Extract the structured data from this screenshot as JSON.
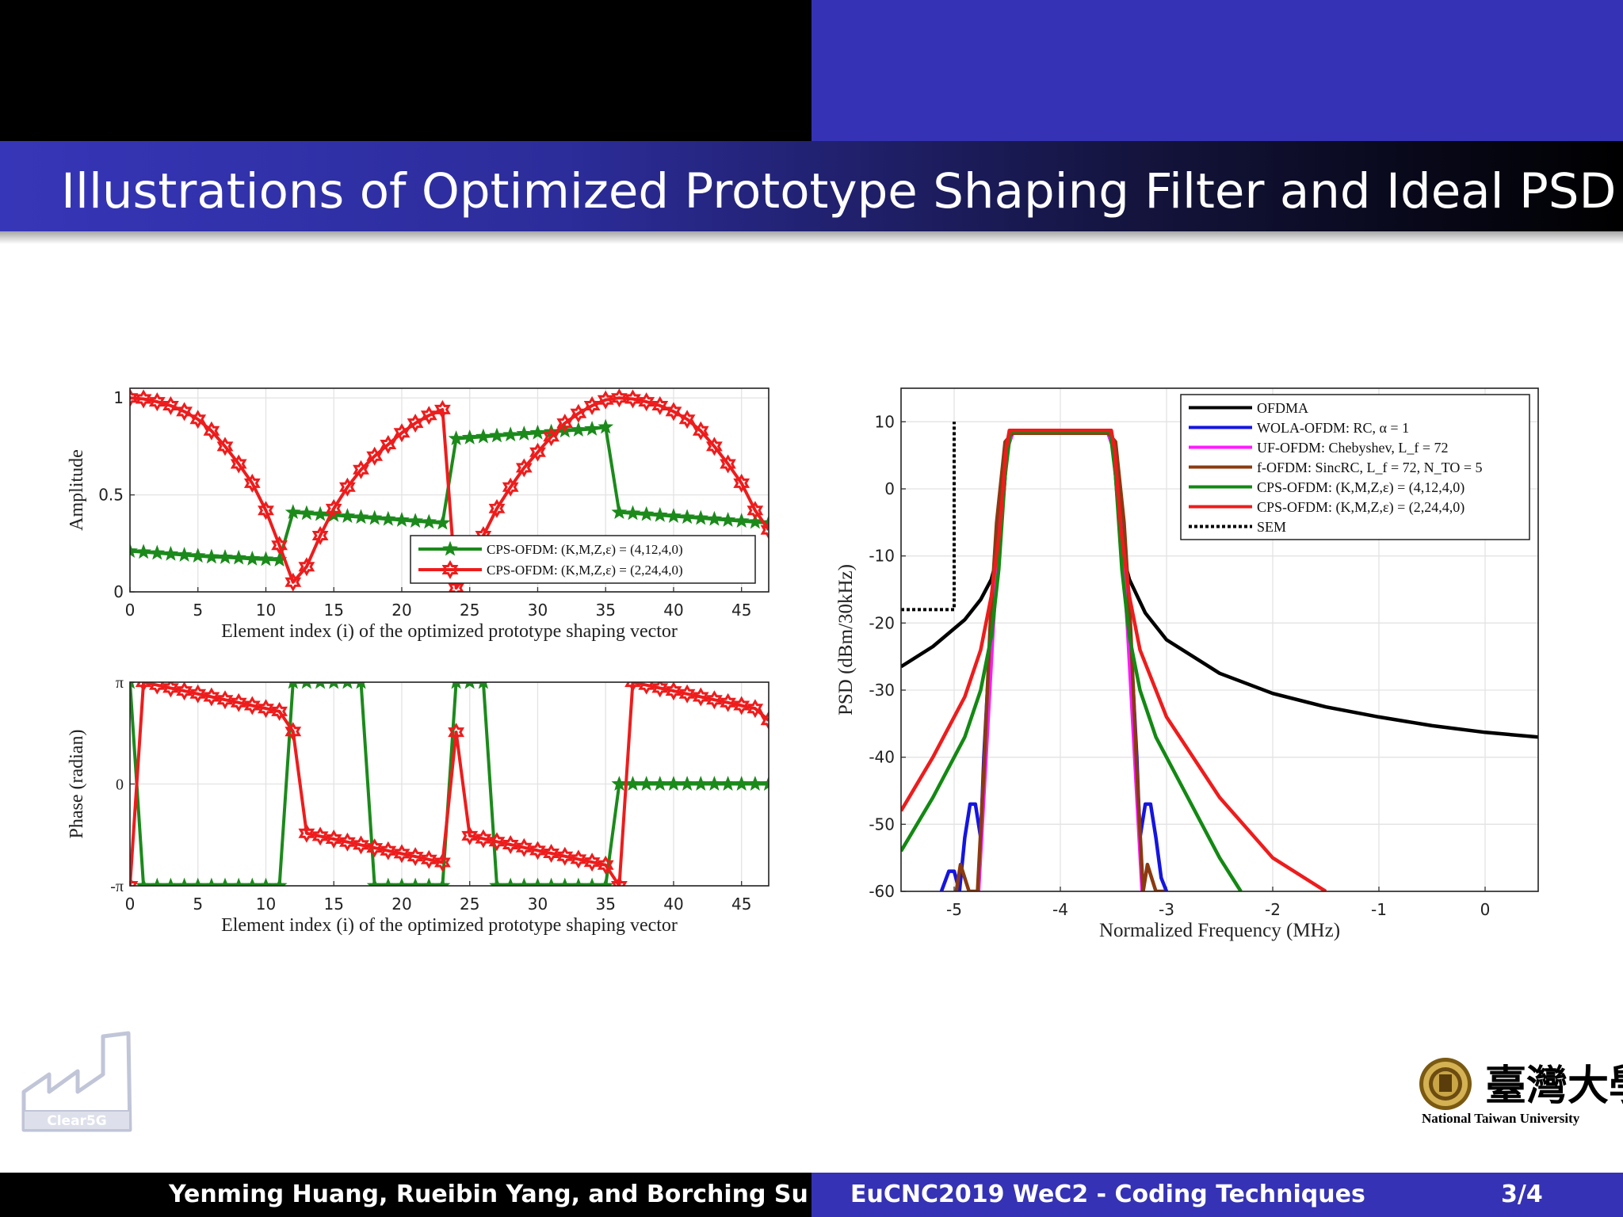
{
  "slide": {
    "title": "Illustrations of Optimized Prototype Shaping Filter and Ideal PSD"
  },
  "footer": {
    "authors": "Yenming Huang, Rueibin Yang, and Borching Su",
    "session": "EuCNC2019 WeC2 - Coding Techniques",
    "page": "3/4"
  },
  "logos": {
    "left_logo_text": "Clear5G",
    "right_logo_label": "National Taiwan University",
    "right_logo_chinese": "臺灣大學"
  },
  "chart_data": [
    {
      "type": "line",
      "id": "amplitude",
      "xlabel": "Element index (i) of the optimized prototype shaping vector",
      "ylabel": "Amplitude",
      "xlim": [
        0,
        47
      ],
      "ylim": [
        0,
        1.05
      ],
      "xticks": [
        "0",
        "5",
        "10",
        "15",
        "20",
        "25",
        "30",
        "35",
        "40",
        "45"
      ],
      "yticks": [
        "0",
        "0.5",
        "1"
      ],
      "grid": true,
      "legend_position": "bottom-right",
      "series": [
        {
          "name": "CPS-OFDM: (K,M,Z,ε) = (4,12,4,0)",
          "color": "#1b8a1b",
          "marker": "star",
          "x": [
            0,
            1,
            2,
            3,
            4,
            5,
            6,
            7,
            8,
            9,
            10,
            11,
            12,
            13,
            14,
            15,
            16,
            17,
            18,
            19,
            20,
            21,
            22,
            23,
            24,
            25,
            26,
            27,
            28,
            29,
            30,
            31,
            32,
            33,
            34,
            35,
            36,
            37,
            38,
            39,
            40,
            41,
            42,
            43,
            44,
            45,
            46,
            47
          ],
          "y": [
            0.21,
            0.205,
            0.2,
            0.195,
            0.19,
            0.185,
            0.18,
            0.178,
            0.175,
            0.17,
            0.168,
            0.165,
            0.41,
            0.405,
            0.4,
            0.395,
            0.39,
            0.385,
            0.38,
            0.375,
            0.37,
            0.365,
            0.36,
            0.355,
            0.79,
            0.795,
            0.8,
            0.805,
            0.81,
            0.815,
            0.82,
            0.825,
            0.83,
            0.835,
            0.84,
            0.85,
            0.41,
            0.405,
            0.4,
            0.395,
            0.39,
            0.385,
            0.38,
            0.375,
            0.37,
            0.365,
            0.36,
            0.355
          ]
        },
        {
          "name": "CPS-OFDM: (K,M,Z,ε) = (2,24,4,0)",
          "color": "#ee1c1c",
          "marker": "hexagram",
          "x": [
            0,
            1,
            2,
            3,
            4,
            5,
            6,
            7,
            8,
            9,
            10,
            11,
            12,
            13,
            14,
            15,
            16,
            17,
            18,
            19,
            20,
            21,
            22,
            23,
            24,
            25,
            26,
            27,
            28,
            29,
            30,
            31,
            32,
            33,
            34,
            35,
            36,
            37,
            38,
            39,
            40,
            41,
            42,
            43,
            44,
            45,
            46,
            47
          ],
          "y": [
            1.0,
            0.995,
            0.98,
            0.96,
            0.93,
            0.89,
            0.83,
            0.75,
            0.66,
            0.56,
            0.42,
            0.24,
            0.05,
            0.13,
            0.29,
            0.43,
            0.54,
            0.63,
            0.7,
            0.76,
            0.82,
            0.87,
            0.91,
            0.94,
            0.02,
            0.12,
            0.29,
            0.43,
            0.54,
            0.64,
            0.72,
            0.8,
            0.87,
            0.92,
            0.96,
            0.99,
            1.0,
            0.995,
            0.98,
            0.96,
            0.93,
            0.89,
            0.83,
            0.75,
            0.66,
            0.56,
            0.42,
            0.32
          ]
        }
      ]
    },
    {
      "type": "line",
      "id": "phase",
      "xlabel": "Element index (i) of the optimized prototype shaping vector",
      "ylabel": "Phase (radian)",
      "xlim": [
        0,
        47
      ],
      "ylim": [
        -3.1416,
        3.1416
      ],
      "xticks": [
        "0",
        "5",
        "10",
        "15",
        "20",
        "25",
        "30",
        "35",
        "40",
        "45"
      ],
      "yticks": [
        "-π",
        "0",
        "π"
      ],
      "grid": true,
      "series": [
        {
          "name": "CPS-OFDM: (K,M,Z,ε) = (4,12,4,0)",
          "color": "#1b8a1b",
          "marker": "star",
          "x": [
            0,
            1,
            2,
            3,
            4,
            5,
            6,
            7,
            8,
            9,
            10,
            11,
            12,
            13,
            14,
            15,
            16,
            17,
            18,
            19,
            20,
            21,
            22,
            23,
            24,
            25,
            26,
            27,
            28,
            29,
            30,
            31,
            32,
            33,
            34,
            35,
            36,
            37,
            38,
            39,
            40,
            41,
            42,
            43,
            44,
            45,
            46,
            47
          ],
          "y": [
            3.1416,
            -3.1416,
            -3.1416,
            -3.1416,
            -3.1416,
            -3.1416,
            -3.1416,
            -3.1416,
            -3.1416,
            -3.1416,
            -3.1416,
            -3.1416,
            3.1416,
            3.1416,
            3.1416,
            3.1416,
            3.1416,
            3.1416,
            -3.1416,
            -3.1416,
            -3.1416,
            -3.1416,
            -3.1416,
            -3.1416,
            3.1416,
            3.1416,
            3.1416,
            -3.1416,
            -3.1416,
            -3.1416,
            -3.1416,
            -3.1416,
            -3.1416,
            -3.1416,
            -3.1416,
            -3.1416,
            0,
            0,
            0,
            0,
            0,
            0,
            0,
            0,
            0,
            0,
            0,
            0
          ]
        },
        {
          "name": "CPS-OFDM: (K,M,Z,ε) = (2,24,4,0)",
          "color": "#ee1c1c",
          "marker": "hexagram",
          "x": [
            0,
            1,
            2,
            3,
            4,
            5,
            6,
            7,
            8,
            9,
            10,
            11,
            12,
            13,
            14,
            15,
            16,
            17,
            18,
            19,
            20,
            21,
            22,
            23,
            24,
            25,
            26,
            27,
            28,
            29,
            30,
            31,
            32,
            33,
            34,
            35,
            36,
            37,
            38,
            39,
            40,
            41,
            42,
            43,
            44,
            45,
            46,
            47
          ],
          "y": [
            -3.1416,
            3.14,
            3.05,
            2.96,
            2.87,
            2.78,
            2.69,
            2.6,
            2.51,
            2.42,
            2.33,
            2.24,
            1.62,
            -1.52,
            -1.61,
            -1.7,
            -1.79,
            -1.88,
            -1.97,
            -2.06,
            -2.15,
            -2.24,
            -2.33,
            -2.42,
            1.6,
            -1.6,
            -1.69,
            -1.78,
            -1.87,
            -1.96,
            -2.05,
            -2.14,
            -2.23,
            -2.32,
            -2.41,
            -2.5,
            -3.1416,
            3.14,
            3.05,
            2.96,
            2.87,
            2.78,
            2.69,
            2.6,
            2.51,
            2.42,
            2.33,
            1.96
          ]
        }
      ]
    },
    {
      "type": "line",
      "id": "psd",
      "xlabel": "Normalized Frequency (MHz)",
      "ylabel": "PSD (dBm/30kHz)",
      "xlim": [
        -5.5,
        0.5
      ],
      "ylim": [
        -60,
        15
      ],
      "xticks": [
        "-5",
        "-4",
        "-3",
        "-2",
        "-1",
        "0"
      ],
      "yticks": [
        "-60",
        "-50",
        "-40",
        "-30",
        "-20",
        "-10",
        "0",
        "10"
      ],
      "grid": true,
      "legend_position": "top-right",
      "series": [
        {
          "name": "OFDMA",
          "color": "#000000",
          "x": [
            -5.5,
            -5.2,
            -4.9,
            -4.75,
            -4.65,
            -4.6,
            -4.55,
            -4.5,
            -4.45,
            -3.55,
            -3.5,
            -3.45,
            -3.4,
            -3.35,
            -3.2,
            -3.0,
            -2.5,
            -2.0,
            -1.5,
            -1.0,
            -0.5,
            0.0,
            0.5
          ],
          "y": [
            -26.5,
            -23.5,
            -19.5,
            -16.5,
            -13.5,
            -10.5,
            -4,
            6,
            8.3,
            8.3,
            6,
            -4,
            -10.5,
            -13.5,
            -18.5,
            -22.5,
            -27.5,
            -30.5,
            -32.5,
            -34.0,
            -35.3,
            -36.3,
            -37.0
          ]
        },
        {
          "name": "WOLA-OFDM: RC, α = 1",
          "color": "#1515e0",
          "x": [
            -5.12,
            -5.05,
            -5.0,
            -4.95,
            -4.9,
            -4.85,
            -4.8,
            -4.75,
            -4.72,
            -4.68,
            -4.63,
            -4.58,
            -4.55,
            -4.5,
            -4.45,
            -3.55,
            -3.5,
            -3.45,
            -3.42,
            -3.37,
            -3.32,
            -3.28,
            -3.25,
            -3.2,
            -3.15,
            -3.1,
            -3.05,
            -3.0
          ],
          "y": [
            -60,
            -57,
            -57,
            -60,
            -52,
            -47,
            -47,
            -52,
            -40,
            -28,
            -18,
            -8,
            2,
            7,
            8.3,
            8.3,
            7,
            2,
            -8,
            -18,
            -28,
            -40,
            -52,
            -47,
            -47,
            -52,
            -58,
            -60
          ]
        },
        {
          "name": "UF-OFDM: Chebyshev, L_f = 72",
          "color": "#ff1aff",
          "x": [
            -4.77,
            -4.7,
            -4.63,
            -4.56,
            -4.5,
            -4.45,
            -3.55,
            -3.5,
            -3.44,
            -3.37,
            -3.3,
            -3.23
          ],
          "y": [
            -60,
            -40,
            -20,
            -3,
            6,
            8.3,
            8.3,
            6,
            -3,
            -20,
            -40,
            -60
          ]
        },
        {
          "name": "f-OFDM: SincRC, L_f = 72, N_TO = 5",
          "color": "#8b3a10",
          "x": [
            -4.98,
            -4.94,
            -4.9,
            -4.86,
            -4.82,
            -4.78,
            -4.72,
            -4.66,
            -4.6,
            -4.52,
            -4.45,
            -3.55,
            -3.48,
            -3.4,
            -3.34,
            -3.28,
            -3.22,
            -3.18,
            -3.14,
            -3.1,
            -3.06,
            -3.02
          ],
          "y": [
            -60,
            -56,
            -58,
            -60,
            -60,
            -60,
            -42,
            -20,
            -5,
            7,
            8.3,
            8.3,
            7,
            -5,
            -20,
            -42,
            -60,
            -56,
            -58,
            -60,
            -60,
            -60
          ]
        },
        {
          "name": "CPS-OFDM: (K,M,Z,ε) = (4,12,4,0)",
          "color": "#138913",
          "x": [
            -5.5,
            -5.2,
            -4.9,
            -4.75,
            -4.65,
            -4.58,
            -4.52,
            -4.47,
            -3.53,
            -3.48,
            -3.42,
            -3.35,
            -3.25,
            -3.1,
            -2.8,
            -2.5,
            -2.3
          ],
          "y": [
            -54,
            -46,
            -37,
            -30,
            -22,
            -12,
            2,
            8.5,
            8.5,
            2,
            -12,
            -22,
            -30,
            -37,
            -46,
            -55,
            -60
          ]
        },
        {
          "name": "CPS-OFDM: (K,M,Z,ε) = (2,24,4,0)",
          "color": "#ee1c1c",
          "x": [
            -5.5,
            -5.2,
            -4.9,
            -4.75,
            -4.65,
            -4.57,
            -4.51,
            -4.48,
            -3.52,
            -3.49,
            -3.43,
            -3.35,
            -3.25,
            -3.0,
            -2.5,
            -2.0,
            -1.5
          ],
          "y": [
            -48,
            -40,
            -31,
            -24,
            -16,
            -6,
            6,
            8.7,
            8.7,
            6,
            -6,
            -16,
            -24,
            -34,
            -46,
            -55,
            -60
          ]
        },
        {
          "name": "SEM",
          "color": "#000000",
          "dashed": true,
          "x": [
            -5.5,
            -5.0,
            -5.0
          ],
          "y": [
            -18,
            -18,
            10
          ]
        }
      ]
    }
  ]
}
